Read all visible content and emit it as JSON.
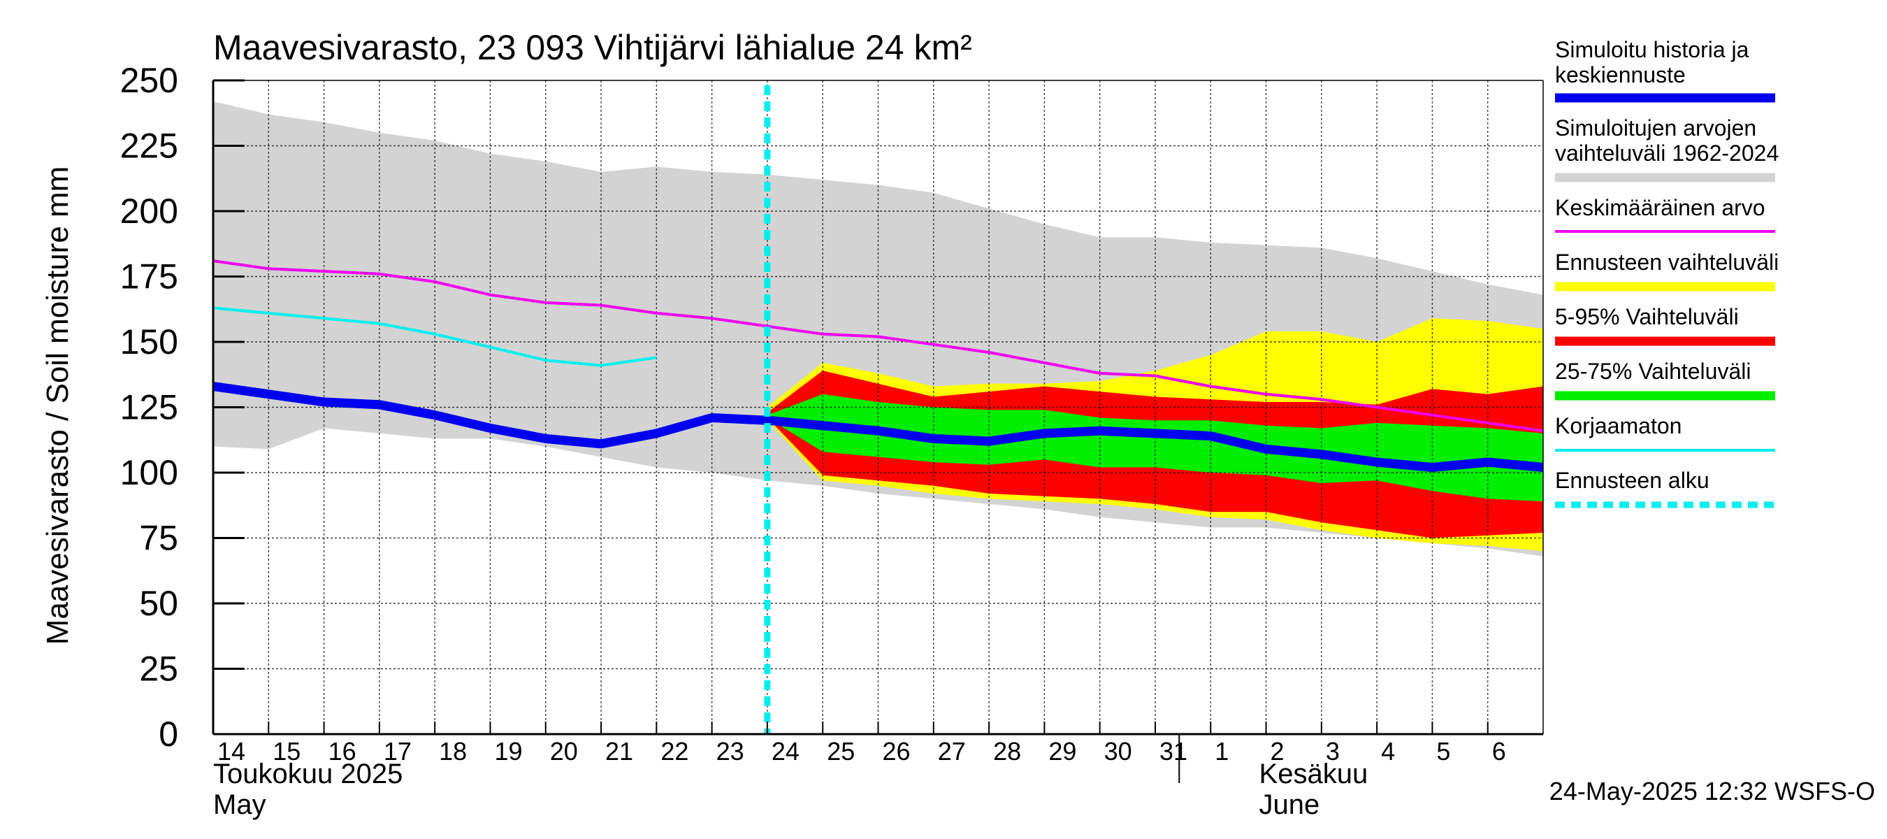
{
  "chart_data": {
    "type": "area",
    "title": "Maavesivarasto, 23 093 Vihtijärvi lähialue 24 km²",
    "ylabel": "Maavesivarasto / Soil moisture   mm",
    "ylim": [
      0,
      250
    ],
    "yticks": [
      "0",
      "25",
      "50",
      "75",
      "100",
      "125",
      "150",
      "175",
      "200",
      "225",
      "250"
    ],
    "xlim": [
      0,
      24
    ],
    "grid": true,
    "x_tick_labels": [
      "14",
      "15",
      "16",
      "17",
      "18",
      "19",
      "20",
      "21",
      "22",
      "23",
      "24",
      "25",
      "26",
      "27",
      "28",
      "29",
      "30",
      "31",
      "1",
      "2",
      "3",
      "4",
      "5",
      "6"
    ],
    "month_labels": [
      {
        "line1": "Toukokuu  2025",
        "line2": "May"
      },
      {
        "line1": "Kesäkuu",
        "line2": "June"
      }
    ],
    "forecast_start_x": 10,
    "timestamp": "24-May-2025 12:32 WSFS-O",
    "legend_placement": "right",
    "colors": {
      "history": "#0000ee",
      "hist_range": "#d3d3d3",
      "mean": "#ee00ee",
      "forecast_range": "#ffff00",
      "p5_95": "#ff0000",
      "p25_75": "#00ee00",
      "uncorrected": "#00eeee",
      "forecast_start": "#00eeee"
    },
    "series": [
      {
        "name": "Simuloitu historia ja keskiennuste",
        "key": "history",
        "x": [
          0,
          1,
          2,
          3,
          4,
          5,
          6,
          7,
          8,
          9,
          10,
          11,
          12,
          13,
          14,
          15,
          16,
          17,
          18,
          19,
          20,
          21,
          22,
          23,
          24
        ],
        "y": [
          133,
          130,
          127,
          126,
          122,
          117,
          113,
          111,
          115,
          121,
          120,
          118,
          116,
          113,
          112,
          115,
          116,
          115,
          114,
          109,
          107,
          104,
          102,
          104,
          102
        ]
      },
      {
        "name": "Keskimääräinen arvo",
        "key": "mean",
        "x": [
          0,
          1,
          2,
          3,
          4,
          5,
          6,
          7,
          8,
          9,
          10,
          11,
          12,
          13,
          14,
          15,
          16,
          17,
          18,
          19,
          20,
          21,
          22,
          23,
          24
        ],
        "y": [
          181,
          178,
          177,
          176,
          173,
          168,
          165,
          164,
          161,
          159,
          156,
          153,
          152,
          149,
          146,
          142,
          138,
          137,
          133,
          130,
          128,
          125,
          122,
          119,
          116
        ]
      },
      {
        "name": "Korjaamaton",
        "key": "uncorrected",
        "x": [
          0,
          1,
          2,
          3,
          4,
          5,
          6,
          7,
          8
        ],
        "y": [
          163,
          161,
          159,
          157,
          153,
          148,
          143,
          141,
          144
        ]
      }
    ],
    "bands": [
      {
        "name": "Simuloitujen arvojen vaihteluväli 1962-2024",
        "key": "hist_range",
        "x": [
          0,
          1,
          2,
          3,
          4,
          5,
          6,
          7,
          8,
          9,
          10,
          11,
          12,
          13,
          14,
          15,
          16,
          17,
          18,
          19,
          20,
          21,
          22,
          23,
          24
        ],
        "lower": [
          110,
          109,
          117,
          115,
          113,
          113,
          110,
          106,
          102,
          100,
          97,
          95,
          92,
          90,
          88,
          86,
          83,
          81,
          79,
          79,
          77,
          75,
          73,
          71,
          68
        ],
        "upper": [
          242,
          237,
          234,
          230,
          227,
          222,
          219,
          215,
          217,
          215,
          214,
          212,
          210,
          207,
          201,
          195,
          190,
          190,
          188,
          187,
          186,
          182,
          177,
          172,
          168
        ]
      },
      {
        "name": "Ennusteen vaihteluväli",
        "key": "forecast_range",
        "x": [
          10,
          11,
          12,
          13,
          14,
          15,
          16,
          17,
          18,
          19,
          20,
          21,
          22,
          23,
          24
        ],
        "lower": [
          120,
          97,
          95,
          92,
          90,
          89,
          88,
          86,
          83,
          82,
          78,
          75,
          73,
          72,
          70
        ],
        "upper": [
          125,
          142,
          138,
          133,
          134,
          134,
          135,
          139,
          145,
          154,
          154,
          150,
          159,
          158,
          155
        ]
      },
      {
        "name": "5-95% Vaihteluväli",
        "key": "p5_95",
        "x": [
          10,
          11,
          12,
          13,
          14,
          15,
          16,
          17,
          18,
          19,
          20,
          21,
          22,
          23,
          24
        ],
        "lower": [
          121,
          99,
          97,
          95,
          92,
          91,
          90,
          88,
          85,
          85,
          81,
          78,
          75,
          76,
          77
        ],
        "upper": [
          123,
          139,
          134,
          129,
          131,
          133,
          131,
          129,
          128,
          127,
          127,
          126,
          132,
          130,
          133
        ]
      },
      {
        "name": "25-75% Vaihteluväli",
        "key": "p25_75",
        "x": [
          10,
          11,
          12,
          13,
          14,
          15,
          16,
          17,
          18,
          19,
          20,
          21,
          22,
          23,
          24
        ],
        "lower": [
          121,
          108,
          106,
          104,
          103,
          105,
          102,
          102,
          100,
          99,
          96,
          97,
          93,
          90,
          89
        ],
        "upper": [
          122,
          130,
          127,
          125,
          124,
          124,
          121,
          120,
          120,
          118,
          117,
          119,
          118,
          117,
          115
        ]
      }
    ],
    "legend": [
      {
        "label": "Simuloitu historia ja keskiennuste",
        "key": "history"
      },
      {
        "label": "Simuloitujen arvojen vaihteluväli 1962-2024",
        "key": "hist_range"
      },
      {
        "label": "Keskimääräinen arvo",
        "key": "mean"
      },
      {
        "label": "Ennusteen vaihteluväli",
        "key": "forecast_range"
      },
      {
        "label": "5-95% Vaihteluväli",
        "key": "p5_95"
      },
      {
        "label": "25-75% Vaihteluväli",
        "key": "p25_75"
      },
      {
        "label": "Korjaamaton",
        "key": "uncorrected"
      },
      {
        "label": "Ennusteen alku",
        "key": "forecast_start"
      }
    ]
  }
}
